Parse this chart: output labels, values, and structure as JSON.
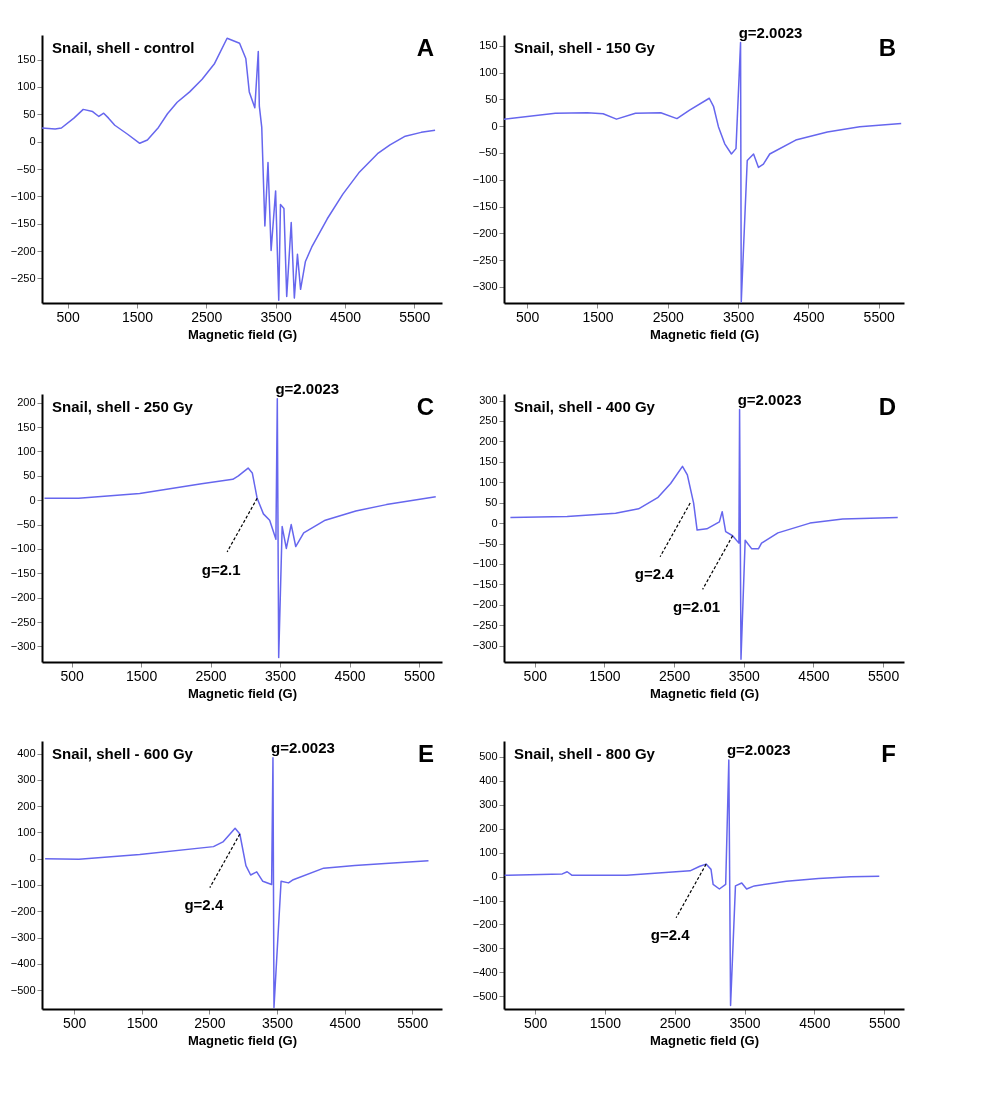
{
  "chart_data": [
    {
      "type": "line",
      "title": "Snail, shell - control",
      "xlabel": "Magnetic field (G)",
      "grid": false,
      "xlim": [
        130,
        5900
      ],
      "ylim": [
        -295,
        195
      ],
      "xticks": [
        500,
        1500,
        2500,
        3500,
        4500,
        5500
      ],
      "yticks": [
        -250,
        -200,
        -150,
        -100,
        -50,
        0,
        50,
        100,
        150
      ],
      "annotations": [
        "A"
      ],
      "series": [
        {
          "color": "#6666ee",
          "x": [
            130,
            320,
            410,
            590,
            725,
            860,
            950,
            1020,
            1090,
            1180,
            1360,
            1540,
            1650,
            1810,
            1940,
            2080,
            2260,
            2440,
            2620,
            2800,
            2980,
            3070,
            3120,
            3200,
            3250,
            3265,
            3300,
            3345,
            3390,
            3435,
            3500,
            3545,
            3570,
            3620,
            3660,
            3725,
            3770,
            3815,
            3860,
            3930,
            4020,
            4245,
            4470,
            4700,
            4970,
            5150,
            5370,
            5600,
            5800
          ],
          "values": [
            25,
            23,
            25,
            43,
            59,
            55,
            46,
            52,
            43,
            30,
            14,
            -3,
            3,
            26,
            51,
            72,
            91,
            114,
            143,
            189,
            180,
            152,
            91,
            62,
            165,
            65,
            26,
            -154,
            -38,
            -199,
            -90,
            -290,
            -115,
            -122,
            -283,
            -148,
            -286,
            -206,
            -270,
            -219,
            -193,
            -141,
            -96,
            -57,
            -22,
            -6,
            10,
            17,
            21
          ]
        }
      ]
    },
    {
      "type": "line",
      "title": "Snail, shell - 150 Gy",
      "xlabel": "Magnetic field (G)",
      "grid": false,
      "xlim": [
        170,
        5860
      ],
      "ylim": [
        -330,
        170
      ],
      "xticks": [
        500,
        1500,
        2500,
        3500,
        4500,
        5500
      ],
      "yticks": [
        -300,
        -250,
        -200,
        -150,
        -100,
        -50,
        0,
        50,
        100,
        150
      ],
      "annotations": [
        "B",
        {
          "text": "g=2.0023",
          "x": 3535,
          "y": 156
        }
      ],
      "series": [
        {
          "color": "#6666ee",
          "x": [
            170,
            900,
            1356,
            1580,
            1770,
            2040,
            2400,
            2630,
            2810,
            3090,
            3150,
            3220,
            3310,
            3405,
            3470,
            3535,
            3545,
            3630,
            3720,
            3790,
            3860,
            3950,
            4320,
            4770,
            5230,
            5820
          ],
          "values": [
            13,
            24,
            25,
            23,
            13,
            24,
            25,
            14,
            30,
            52,
            37,
            -1,
            -33,
            -52,
            -42,
            156,
            -328,
            -64,
            -52,
            -77,
            -71,
            -52,
            -26,
            -11,
            -1,
            5
          ]
        }
      ]
    },
    {
      "type": "line",
      "title": "Snail, shell - 250 Gy",
      "xlabel": "Magnetic field (G)",
      "grid": false,
      "xlim": [
        74,
        5830
      ],
      "ylim": [
        -332,
        218
      ],
      "xticks": [
        500,
        1500,
        2500,
        3500,
        4500,
        5500
      ],
      "yticks": [
        -300,
        -250,
        -200,
        -150,
        -100,
        -50,
        0,
        50,
        100,
        150,
        200
      ],
      "annotations": [
        "C",
        {
          "text": "g=2.0023",
          "x": 3460,
          "y": 208
        },
        {
          "text": "g=2.1",
          "x": 3170,
          "y": 4
        }
      ],
      "series": [
        {
          "color": "#6666ee",
          "x": [
            110,
            600,
            1480,
            2370,
            2820,
            2900,
            3040,
            3100,
            3170,
            3260,
            3350,
            3440,
            3460,
            3480,
            3530,
            3590,
            3660,
            3725,
            3840,
            4150,
            4590,
            5030,
            5740
          ],
          "values": [
            4,
            4,
            14,
            34,
            43,
            50,
            66,
            56,
            4,
            -28,
            -41,
            -80,
            208,
            -323,
            -54,
            -99,
            -50,
            -95,
            -67,
            -41,
            -22,
            -9,
            7
          ]
        }
      ]
    },
    {
      "type": "line",
      "title": "Snail, shell - 400 Gy",
      "xlabel": "Magnetic field (G)",
      "grid": false,
      "xlim": [
        58,
        5800
      ],
      "ylim": [
        -340,
        316
      ],
      "xticks": [
        500,
        1500,
        2500,
        3500,
        4500,
        5500
      ],
      "yticks": [
        -300,
        -250,
        -200,
        -150,
        -100,
        -50,
        0,
        50,
        100,
        150,
        200,
        250,
        300
      ],
      "annotations": [
        "D",
        {
          "text": "g=2.0023",
          "x": 3440,
          "y": 278
        },
        {
          "text": "g=2.4",
          "x": 2730,
          "y": 49
        },
        {
          "text": "g=2.01",
          "x": 3340,
          "y": -31
        }
      ],
      "series": [
        {
          "color": "#6666ee",
          "x": [
            150,
            965,
            1660,
            1990,
            2270,
            2450,
            2620,
            2690,
            2780,
            2830,
            2970,
            3150,
            3190,
            3240,
            3340,
            3430,
            3440,
            3460,
            3520,
            3615,
            3710,
            3755,
            3990,
            4450,
            4920,
            5710
          ],
          "values": [
            14,
            16,
            24,
            35,
            63,
            97,
            139,
            118,
            49,
            -17,
            -14,
            3,
            28,
            -21,
            -31,
            -49,
            278,
            -333,
            -42,
            -63,
            -63,
            -49,
            -24,
            0,
            10,
            14
          ]
        }
      ]
    },
    {
      "type": "line",
      "title": "Snail, shell - 600 Gy",
      "xlabel": "Magnetic field (G)",
      "grid": false,
      "xlim": [
        24,
        5940
      ],
      "ylim": [
        -572,
        448
      ],
      "xticks": [
        500,
        1500,
        2500,
        3500,
        4500,
        5500
      ],
      "yticks": [
        -500,
        -400,
        -300,
        -200,
        -100,
        0,
        100,
        200,
        300,
        400
      ],
      "annotations": [
        "E",
        {
          "text": "g=2.0023",
          "x": 3440,
          "y": 384
        },
        {
          "text": "g=2.4",
          "x": 2950,
          "y": 94
        }
      ],
      "series": [
        {
          "color": "#6666ee",
          "x": [
            70,
            570,
            1470,
            2560,
            2700,
            2880,
            2950,
            3040,
            3110,
            3200,
            3290,
            3420,
            3440,
            3455,
            3560,
            3670,
            3740,
            4190,
            4650,
            5100,
            5740
          ],
          "values": [
            0,
            -2,
            16,
            46,
            64,
            116,
            94,
            -26,
            -62,
            -50,
            -86,
            -98,
            384,
            -566,
            -86,
            -92,
            -80,
            -36,
            -26,
            -18,
            -8
          ]
        }
      ]
    },
    {
      "type": "line",
      "title": "Snail, shell - 800 Gy",
      "xlabel": "Magnetic field (G)",
      "grid": false,
      "xlim": [
        55,
        5784
      ],
      "ylim": [
        -553,
        566
      ],
      "xticks": [
        500,
        1500,
        2500,
        3500,
        4500,
        5500
      ],
      "yticks": [
        -500,
        -400,
        -300,
        -200,
        -100,
        0,
        100,
        200,
        300,
        400,
        500
      ],
      "annotations": [
        "F",
        {
          "text": "g=2.0023",
          "x": 3275,
          "y": 487
        },
        {
          "text": "g=2.4",
          "x": 2950,
          "y": 52
        }
      ],
      "series": [
        {
          "color": "#6666ee",
          "x": [
            64,
            890,
            960,
            1030,
            1810,
            2720,
            2860,
            2950,
            3020,
            3050,
            3140,
            3230,
            3275,
            3300,
            3370,
            3460,
            3530,
            3640,
            4100,
            4560,
            5020,
            5430
          ],
          "values": [
            5,
            11,
            20,
            5,
            5,
            24,
            43,
            52,
            30,
            -33,
            -52,
            -33,
            487,
            -538,
            -39,
            -27,
            -52,
            -39,
            -20,
            -8,
            -1,
            1
          ]
        }
      ]
    }
  ]
}
